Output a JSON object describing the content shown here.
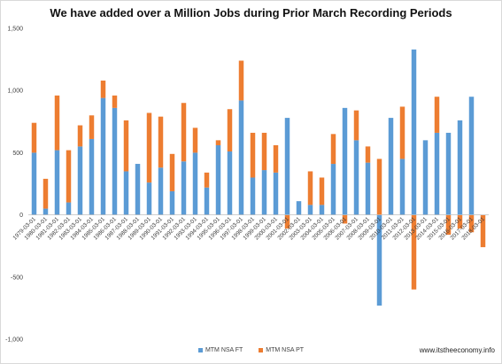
{
  "chart_data": {
    "type": "bar",
    "stacked": true,
    "title": "We have added over a Million Jobs during Prior March Recording Periods",
    "xlabel": "",
    "ylabel": "",
    "ylim": [
      -1000,
      1500
    ],
    "yticks": [
      "-1,000",
      "-500",
      "0",
      "500",
      "1,000",
      "1,500"
    ],
    "ytick_values": [
      -1000,
      -500,
      0,
      500,
      1000,
      1500
    ],
    "grid": false,
    "legend_position": "bottom",
    "categories": [
      "1979-03-01",
      "1980-03-01",
      "1981-03-01",
      "1982-03-01",
      "1983-03-01",
      "1984-03-01",
      "1985-03-01",
      "1986-03-01",
      "1987-03-01",
      "1988-03-01",
      "1989-03-01",
      "1990-03-01",
      "1991-03-01",
      "1992-03-01",
      "1993-03-01",
      "1994-03-01",
      "1995-03-01",
      "1996-03-01",
      "1997-03-01",
      "1998-03-01",
      "1999-03-01",
      "2000-03-01",
      "2001-03-01",
      "2002-03-01",
      "2003-03-01",
      "2004-03-01",
      "2005-03-01",
      "2006-03-01",
      "2007-03-01",
      "2008-03-01",
      "2009-03-01",
      "2010-03-01",
      "2011-03-01",
      "2012-03-01",
      "2013-03-01",
      "2014-03-01",
      "2015-03-01",
      "2016-03-01",
      "2017-03-01",
      "2018-03-01"
    ],
    "series": [
      {
        "name": "MTM NSA FT",
        "color": "#5b9bd5",
        "values": [
          500,
          50,
          520,
          100,
          550,
          610,
          940,
          860,
          350,
          410,
          260,
          380,
          190,
          430,
          500,
          220,
          560,
          510,
          920,
          300,
          360,
          340,
          780,
          110,
          80,
          80,
          410,
          860,
          600,
          420,
          -730,
          780,
          450,
          1330,
          600,
          660,
          660,
          760,
          950,
          0
        ]
      },
      {
        "name": "MTM NSA PT",
        "color": "#ed7d31",
        "values": [
          240,
          240,
          440,
          420,
          170,
          190,
          140,
          100,
          410,
          0,
          560,
          410,
          300,
          470,
          200,
          120,
          40,
          340,
          320,
          360,
          300,
          220,
          -110,
          0,
          270,
          220,
          240,
          -70,
          240,
          130,
          450,
          0,
          420,
          -600,
          0,
          290,
          -160,
          -110,
          -140,
          -260
        ]
      }
    ]
  },
  "watermark": "www.itstheeconomy.info"
}
